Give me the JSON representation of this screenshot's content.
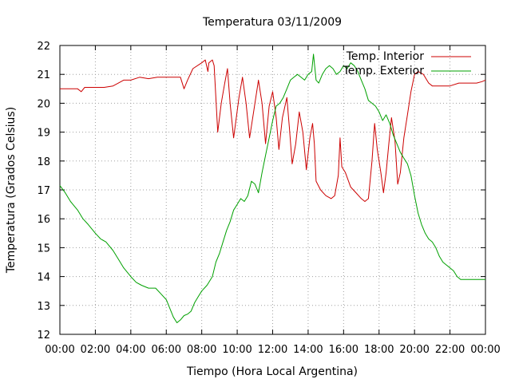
{
  "chart_data": {
    "type": "line",
    "title": "Temperatura 03/11/2009",
    "xlabel": "Tiempo (Hora Local Argentina)",
    "ylabel": "Temperatura (Grados Celsius)",
    "xlim": [
      0,
      24
    ],
    "ylim": [
      12,
      22
    ],
    "grid": true,
    "legend_position": "top-right",
    "x_ticks": [
      "00:00",
      "02:00",
      "04:00",
      "06:00",
      "08:00",
      "10:00",
      "12:00",
      "14:00",
      "16:00",
      "18:00",
      "20:00",
      "22:00",
      "00:00"
    ],
    "y_ticks": [
      "12",
      "13",
      "14",
      "15",
      "16",
      "17",
      "18",
      "19",
      "20",
      "21",
      "22"
    ],
    "series": [
      {
        "name": "Temp. Interior",
        "color": "#cc0000",
        "points": [
          [
            0,
            20.5
          ],
          [
            1,
            20.5
          ],
          [
            1.2,
            20.4
          ],
          [
            1.4,
            20.55
          ],
          [
            2,
            20.55
          ],
          [
            2.5,
            20.55
          ],
          [
            3,
            20.6
          ],
          [
            3.3,
            20.7
          ],
          [
            3.6,
            20.8
          ],
          [
            4,
            20.8
          ],
          [
            4.5,
            20.9
          ],
          [
            5,
            20.85
          ],
          [
            5.5,
            20.9
          ],
          [
            6,
            20.9
          ],
          [
            6.8,
            20.9
          ],
          [
            7.0,
            20.5
          ],
          [
            7.2,
            20.8
          ],
          [
            7.5,
            21.2
          ],
          [
            8,
            21.4
          ],
          [
            8.2,
            21.5
          ],
          [
            8.35,
            21.1
          ],
          [
            8.4,
            21.4
          ],
          [
            8.6,
            21.5
          ],
          [
            8.7,
            21.3
          ],
          [
            8.9,
            19.0
          ],
          [
            9.1,
            20.0
          ],
          [
            9.3,
            20.7
          ],
          [
            9.45,
            21.2
          ],
          [
            9.6,
            20.0
          ],
          [
            9.8,
            18.8
          ],
          [
            10.1,
            20.2
          ],
          [
            10.3,
            20.9
          ],
          [
            10.5,
            20.0
          ],
          [
            10.7,
            18.8
          ],
          [
            10.95,
            19.8
          ],
          [
            11.2,
            20.8
          ],
          [
            11.4,
            20.0
          ],
          [
            11.6,
            18.6
          ],
          [
            11.8,
            19.9
          ],
          [
            12.0,
            20.4
          ],
          [
            12.2,
            19.5
          ],
          [
            12.35,
            18.4
          ],
          [
            12.55,
            19.5
          ],
          [
            12.8,
            20.2
          ],
          [
            12.95,
            19.1
          ],
          [
            13.1,
            17.9
          ],
          [
            13.3,
            18.6
          ],
          [
            13.5,
            19.7
          ],
          [
            13.7,
            19.0
          ],
          [
            13.9,
            17.7
          ],
          [
            14.1,
            18.8
          ],
          [
            14.25,
            19.3
          ],
          [
            14.35,
            18.6
          ],
          [
            14.45,
            17.3
          ],
          [
            14.7,
            17.0
          ],
          [
            15.0,
            16.8
          ],
          [
            15.3,
            16.7
          ],
          [
            15.5,
            16.8
          ],
          [
            15.7,
            17.5
          ],
          [
            15.8,
            18.8
          ],
          [
            15.9,
            17.8
          ],
          [
            16.1,
            17.6
          ],
          [
            16.4,
            17.1
          ],
          [
            16.7,
            16.9
          ],
          [
            17.0,
            16.7
          ],
          [
            17.2,
            16.6
          ],
          [
            17.4,
            16.7
          ],
          [
            17.6,
            18.0
          ],
          [
            17.75,
            19.3
          ],
          [
            17.9,
            18.4
          ],
          [
            18.1,
            17.6
          ],
          [
            18.25,
            16.9
          ],
          [
            18.4,
            17.6
          ],
          [
            18.55,
            18.6
          ],
          [
            18.7,
            19.5
          ],
          [
            18.9,
            18.7
          ],
          [
            19.05,
            17.2
          ],
          [
            19.2,
            17.6
          ],
          [
            19.4,
            18.8
          ],
          [
            19.6,
            19.6
          ],
          [
            19.8,
            20.4
          ],
          [
            20.0,
            21.0
          ],
          [
            20.2,
            21.1
          ],
          [
            20.5,
            21.0
          ],
          [
            20.8,
            20.7
          ],
          [
            21.0,
            20.6
          ],
          [
            21.5,
            20.6
          ],
          [
            22,
            20.6
          ],
          [
            22.5,
            20.7
          ],
          [
            23,
            20.7
          ],
          [
            23.5,
            20.7
          ],
          [
            23.8,
            20.75
          ],
          [
            24,
            20.8
          ]
        ]
      },
      {
        "name": "Temp. Exterior",
        "color": "#00a000",
        "points": [
          [
            0,
            17.15
          ],
          [
            0.3,
            16.9
          ],
          [
            0.6,
            16.6
          ],
          [
            1,
            16.3
          ],
          [
            1.3,
            16.0
          ],
          [
            1.6,
            15.8
          ],
          [
            2,
            15.5
          ],
          [
            2.3,
            15.3
          ],
          [
            2.6,
            15.2
          ],
          [
            3,
            14.9
          ],
          [
            3.3,
            14.6
          ],
          [
            3.6,
            14.3
          ],
          [
            4,
            14.0
          ],
          [
            4.3,
            13.8
          ],
          [
            4.6,
            13.7
          ],
          [
            5,
            13.6
          ],
          [
            5.4,
            13.6
          ],
          [
            5.7,
            13.4
          ],
          [
            6,
            13.2
          ],
          [
            6.2,
            12.9
          ],
          [
            6.4,
            12.6
          ],
          [
            6.6,
            12.4
          ],
          [
            6.8,
            12.5
          ],
          [
            7,
            12.65
          ],
          [
            7.2,
            12.7
          ],
          [
            7.4,
            12.8
          ],
          [
            7.6,
            13.1
          ],
          [
            7.8,
            13.3
          ],
          [
            8,
            13.5
          ],
          [
            8.3,
            13.7
          ],
          [
            8.6,
            14.0
          ],
          [
            8.8,
            14.5
          ],
          [
            9.0,
            14.8
          ],
          [
            9.2,
            15.2
          ],
          [
            9.4,
            15.6
          ],
          [
            9.6,
            15.9
          ],
          [
            9.8,
            16.3
          ],
          [
            10.0,
            16.5
          ],
          [
            10.2,
            16.7
          ],
          [
            10.4,
            16.6
          ],
          [
            10.6,
            16.8
          ],
          [
            10.8,
            17.3
          ],
          [
            11.0,
            17.2
          ],
          [
            11.2,
            16.9
          ],
          [
            11.4,
            17.6
          ],
          [
            11.6,
            18.2
          ],
          [
            11.8,
            18.8
          ],
          [
            12.0,
            19.4
          ],
          [
            12.2,
            19.9
          ],
          [
            12.4,
            20.0
          ],
          [
            12.6,
            20.2
          ],
          [
            12.8,
            20.5
          ],
          [
            13.0,
            20.8
          ],
          [
            13.2,
            20.9
          ],
          [
            13.4,
            21.0
          ],
          [
            13.6,
            20.9
          ],
          [
            13.8,
            20.8
          ],
          [
            14.0,
            21.0
          ],
          [
            14.2,
            21.1
          ],
          [
            14.3,
            21.7
          ],
          [
            14.45,
            20.8
          ],
          [
            14.6,
            20.7
          ],
          [
            14.8,
            21.0
          ],
          [
            15.0,
            21.2
          ],
          [
            15.2,
            21.3
          ],
          [
            15.4,
            21.2
          ],
          [
            15.6,
            21.0
          ],
          [
            15.8,
            21.1
          ],
          [
            16.0,
            21.3
          ],
          [
            16.2,
            21.2
          ],
          [
            16.4,
            21.4
          ],
          [
            16.6,
            21.3
          ],
          [
            16.8,
            21.1
          ],
          [
            17.0,
            20.8
          ],
          [
            17.2,
            20.5
          ],
          [
            17.4,
            20.1
          ],
          [
            17.6,
            20.0
          ],
          [
            17.8,
            19.9
          ],
          [
            18.0,
            19.7
          ],
          [
            18.2,
            19.4
          ],
          [
            18.4,
            19.6
          ],
          [
            18.6,
            19.3
          ],
          [
            18.8,
            18.9
          ],
          [
            19.0,
            18.6
          ],
          [
            19.2,
            18.3
          ],
          [
            19.4,
            18.1
          ],
          [
            19.6,
            17.9
          ],
          [
            19.8,
            17.5
          ],
          [
            20.0,
            16.8
          ],
          [
            20.2,
            16.2
          ],
          [
            20.4,
            15.8
          ],
          [
            20.6,
            15.5
          ],
          [
            20.8,
            15.3
          ],
          [
            21.0,
            15.2
          ],
          [
            21.2,
            15.0
          ],
          [
            21.4,
            14.7
          ],
          [
            21.6,
            14.5
          ],
          [
            21.8,
            14.4
          ],
          [
            22.0,
            14.3
          ],
          [
            22.2,
            14.2
          ],
          [
            22.4,
            14.0
          ],
          [
            22.6,
            13.9
          ],
          [
            23,
            13.9
          ],
          [
            23.5,
            13.9
          ],
          [
            24,
            13.9
          ]
        ]
      }
    ]
  }
}
